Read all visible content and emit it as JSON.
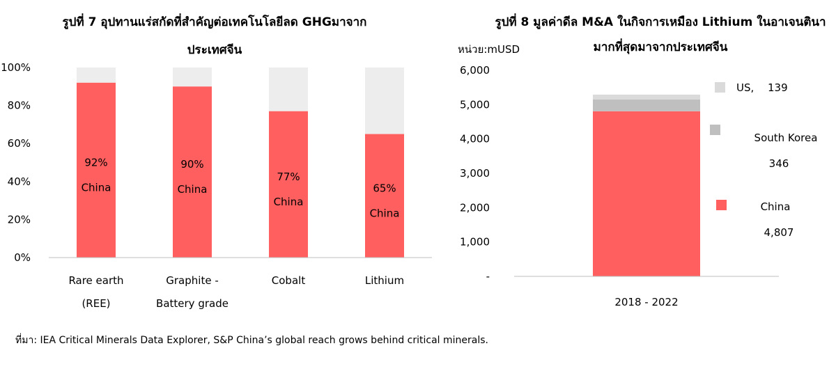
{
  "chart_data": [
    {
      "type": "bar",
      "stacked": true,
      "title_line1": "รูปที่ 7 อุปทานแร่สกัดที่สำคัญต่อเทคโนโลยีลด GHGมาจาก",
      "title_line2": "ประเทศจีน",
      "ylim": [
        0,
        100
      ],
      "yticks": [
        "0%",
        "20%",
        "40%",
        "60%",
        "80%",
        "100%"
      ],
      "categories": [
        [
          "Rare earth",
          "(REE)"
        ],
        [
          "Graphite -",
          "Battery grade"
        ],
        [
          "Cobalt"
        ],
        [
          "Lithium"
        ]
      ],
      "values": [
        92,
        90,
        77,
        65
      ],
      "data_labels": [
        "92%",
        "90%",
        "77%",
        "65%"
      ],
      "series_label": "China",
      "colors": {
        "china": "#ff5f5f",
        "rest": "#ededed"
      }
    },
    {
      "type": "bar",
      "stacked": true,
      "title_line1": "รูปที่ 8 มูลค่าดีล M&A ในกิจการเหมือง Lithium ในอาเจนตินา",
      "title_line2": "มากที่สุดมาจากประเทศจีน",
      "unit": "หน่วย:mUSD",
      "ylim": [
        0,
        6000
      ],
      "yticks": [
        "-",
        "1,000",
        "2,000",
        "3,000",
        "4,000",
        "5,000",
        "6,000"
      ],
      "category": "2018 - 2022",
      "series": [
        {
          "name": "China",
          "value": 4807,
          "value_label": "4,807",
          "color": "#ff5f5f"
        },
        {
          "name": "South Korea",
          "value": 346,
          "value_label": "346",
          "color": "#bfbfbf"
        },
        {
          "name": "US,",
          "value": 139,
          "value_label": "139",
          "color": "#dadada"
        }
      ]
    }
  ],
  "source": "ที่มา: IEA Critical Minerals Data Explorer, S&P China’s global reach grows behind critical minerals."
}
